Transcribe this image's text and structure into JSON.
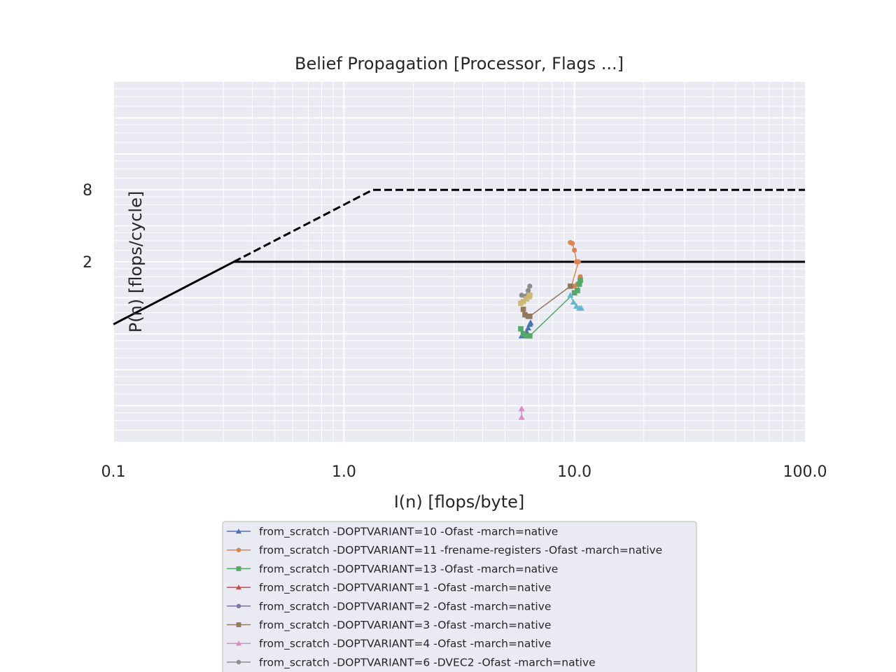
{
  "chart_data": {
    "type": "scatter",
    "title": "Belief Propagation [Processor, Flags ...]",
    "xlabel": "I(n) [flops/byte]",
    "ylabel": "P(n) [flops/cycle]",
    "x_scale": "log",
    "y_scale": "log",
    "xlim": [
      0.1,
      100
    ],
    "ylim": [
      0.0625,
      64
    ],
    "x_ticks": [
      {
        "value": 0.1,
        "label": "0.1"
      },
      {
        "value": 1,
        "label": "1.0"
      },
      {
        "value": 10,
        "label": "10.0"
      },
      {
        "value": 100,
        "label": "100.0"
      }
    ],
    "y_ticks": [
      {
        "value": 2,
        "label": "2"
      },
      {
        "value": 8,
        "label": "8"
      }
    ],
    "grid": true,
    "legend_placement": "below plot",
    "roofs": [
      {
        "style": "solid",
        "points": [
          [
            0.1,
            0.6
          ],
          [
            0.333,
            2
          ],
          [
            100,
            2
          ]
        ]
      },
      {
        "style": "dashed",
        "points": [
          [
            0.333,
            2
          ],
          [
            1.333,
            8
          ],
          [
            100,
            8
          ]
        ]
      }
    ],
    "series": [
      {
        "name": "from_scratch -DOPTVARIANT=10 -Ofast -march=native",
        "color": "#4c72b0",
        "marker": "triangle",
        "points": [
          [
            5.9,
            0.48
          ],
          [
            6.0,
            0.5
          ],
          [
            6.2,
            0.52
          ],
          [
            6.3,
            0.56
          ],
          [
            6.4,
            0.6
          ],
          [
            6.45,
            0.62
          ]
        ]
      },
      {
        "name": "from_scratch -DOPTVARIANT=11 -frename-registers -Ofast -march=native",
        "color": "#dd8452",
        "marker": "circle",
        "points": [
          [
            9.6,
            2.9
          ],
          [
            9.8,
            2.85
          ],
          [
            10.0,
            2.5
          ],
          [
            10.2,
            2.0
          ],
          [
            10.4,
            2.0
          ],
          [
            9.7,
            1.25
          ],
          [
            10.0,
            1.25
          ],
          [
            10.3,
            1.3
          ],
          [
            10.6,
            1.5
          ]
        ]
      },
      {
        "name": "from_scratch -DOPTVARIANT=13 -Ofast -march=native",
        "color": "#55a868",
        "marker": "square",
        "points": [
          [
            5.85,
            0.55
          ],
          [
            6.0,
            0.5
          ],
          [
            6.2,
            0.48
          ],
          [
            6.4,
            0.48
          ],
          [
            10.0,
            1.1
          ],
          [
            10.3,
            1.15
          ],
          [
            10.5,
            1.3
          ],
          [
            10.6,
            1.4
          ]
        ]
      },
      {
        "name": "from_scratch -DOPTVARIANT=1 -Ofast -march=native",
        "color": "#c44e52",
        "marker": "triangle",
        "points": []
      },
      {
        "name": "from_scratch -DOPTVARIANT=2 -Ofast -march=native",
        "color": "#8172b3",
        "marker": "circle",
        "points": []
      },
      {
        "name": "from_scratch -DOPTVARIANT=3 -Ofast -march=native",
        "color": "#937860",
        "marker": "square",
        "points": [
          [
            6.0,
            0.8
          ],
          [
            6.1,
            0.72
          ],
          [
            6.3,
            0.7
          ],
          [
            6.4,
            0.7
          ],
          [
            9.6,
            1.25
          ]
        ]
      },
      {
        "name": "from_scratch -DOPTVARIANT=4 -Ofast -march=native",
        "color": "#da8bc3",
        "marker": "triangle",
        "points": [
          [
            5.9,
            0.118
          ],
          [
            5.9,
            0.1
          ]
        ]
      },
      {
        "name": "from_scratch -DOPTVARIANT=6 -DVEC2 -Ofast -march=native",
        "color": "#8c8c8c",
        "marker": "circle",
        "points": [
          [
            5.9,
            1.05
          ],
          [
            6.1,
            1.03
          ],
          [
            6.3,
            1.15
          ],
          [
            6.4,
            1.25
          ]
        ]
      },
      {
        "color": "#ccb974",
        "marker": "square",
        "points": [
          [
            5.85,
            0.9
          ],
          [
            6.0,
            0.93
          ],
          [
            6.2,
            0.98
          ],
          [
            6.35,
            1.02
          ],
          [
            6.4,
            1.05
          ]
        ]
      },
      {
        "color": "#64b5cd",
        "marker": "triangle",
        "points": [
          [
            9.6,
            1.05
          ],
          [
            9.9,
            0.92
          ],
          [
            10.2,
            0.85
          ],
          [
            10.5,
            0.82
          ],
          [
            10.7,
            0.82
          ]
        ]
      }
    ]
  }
}
